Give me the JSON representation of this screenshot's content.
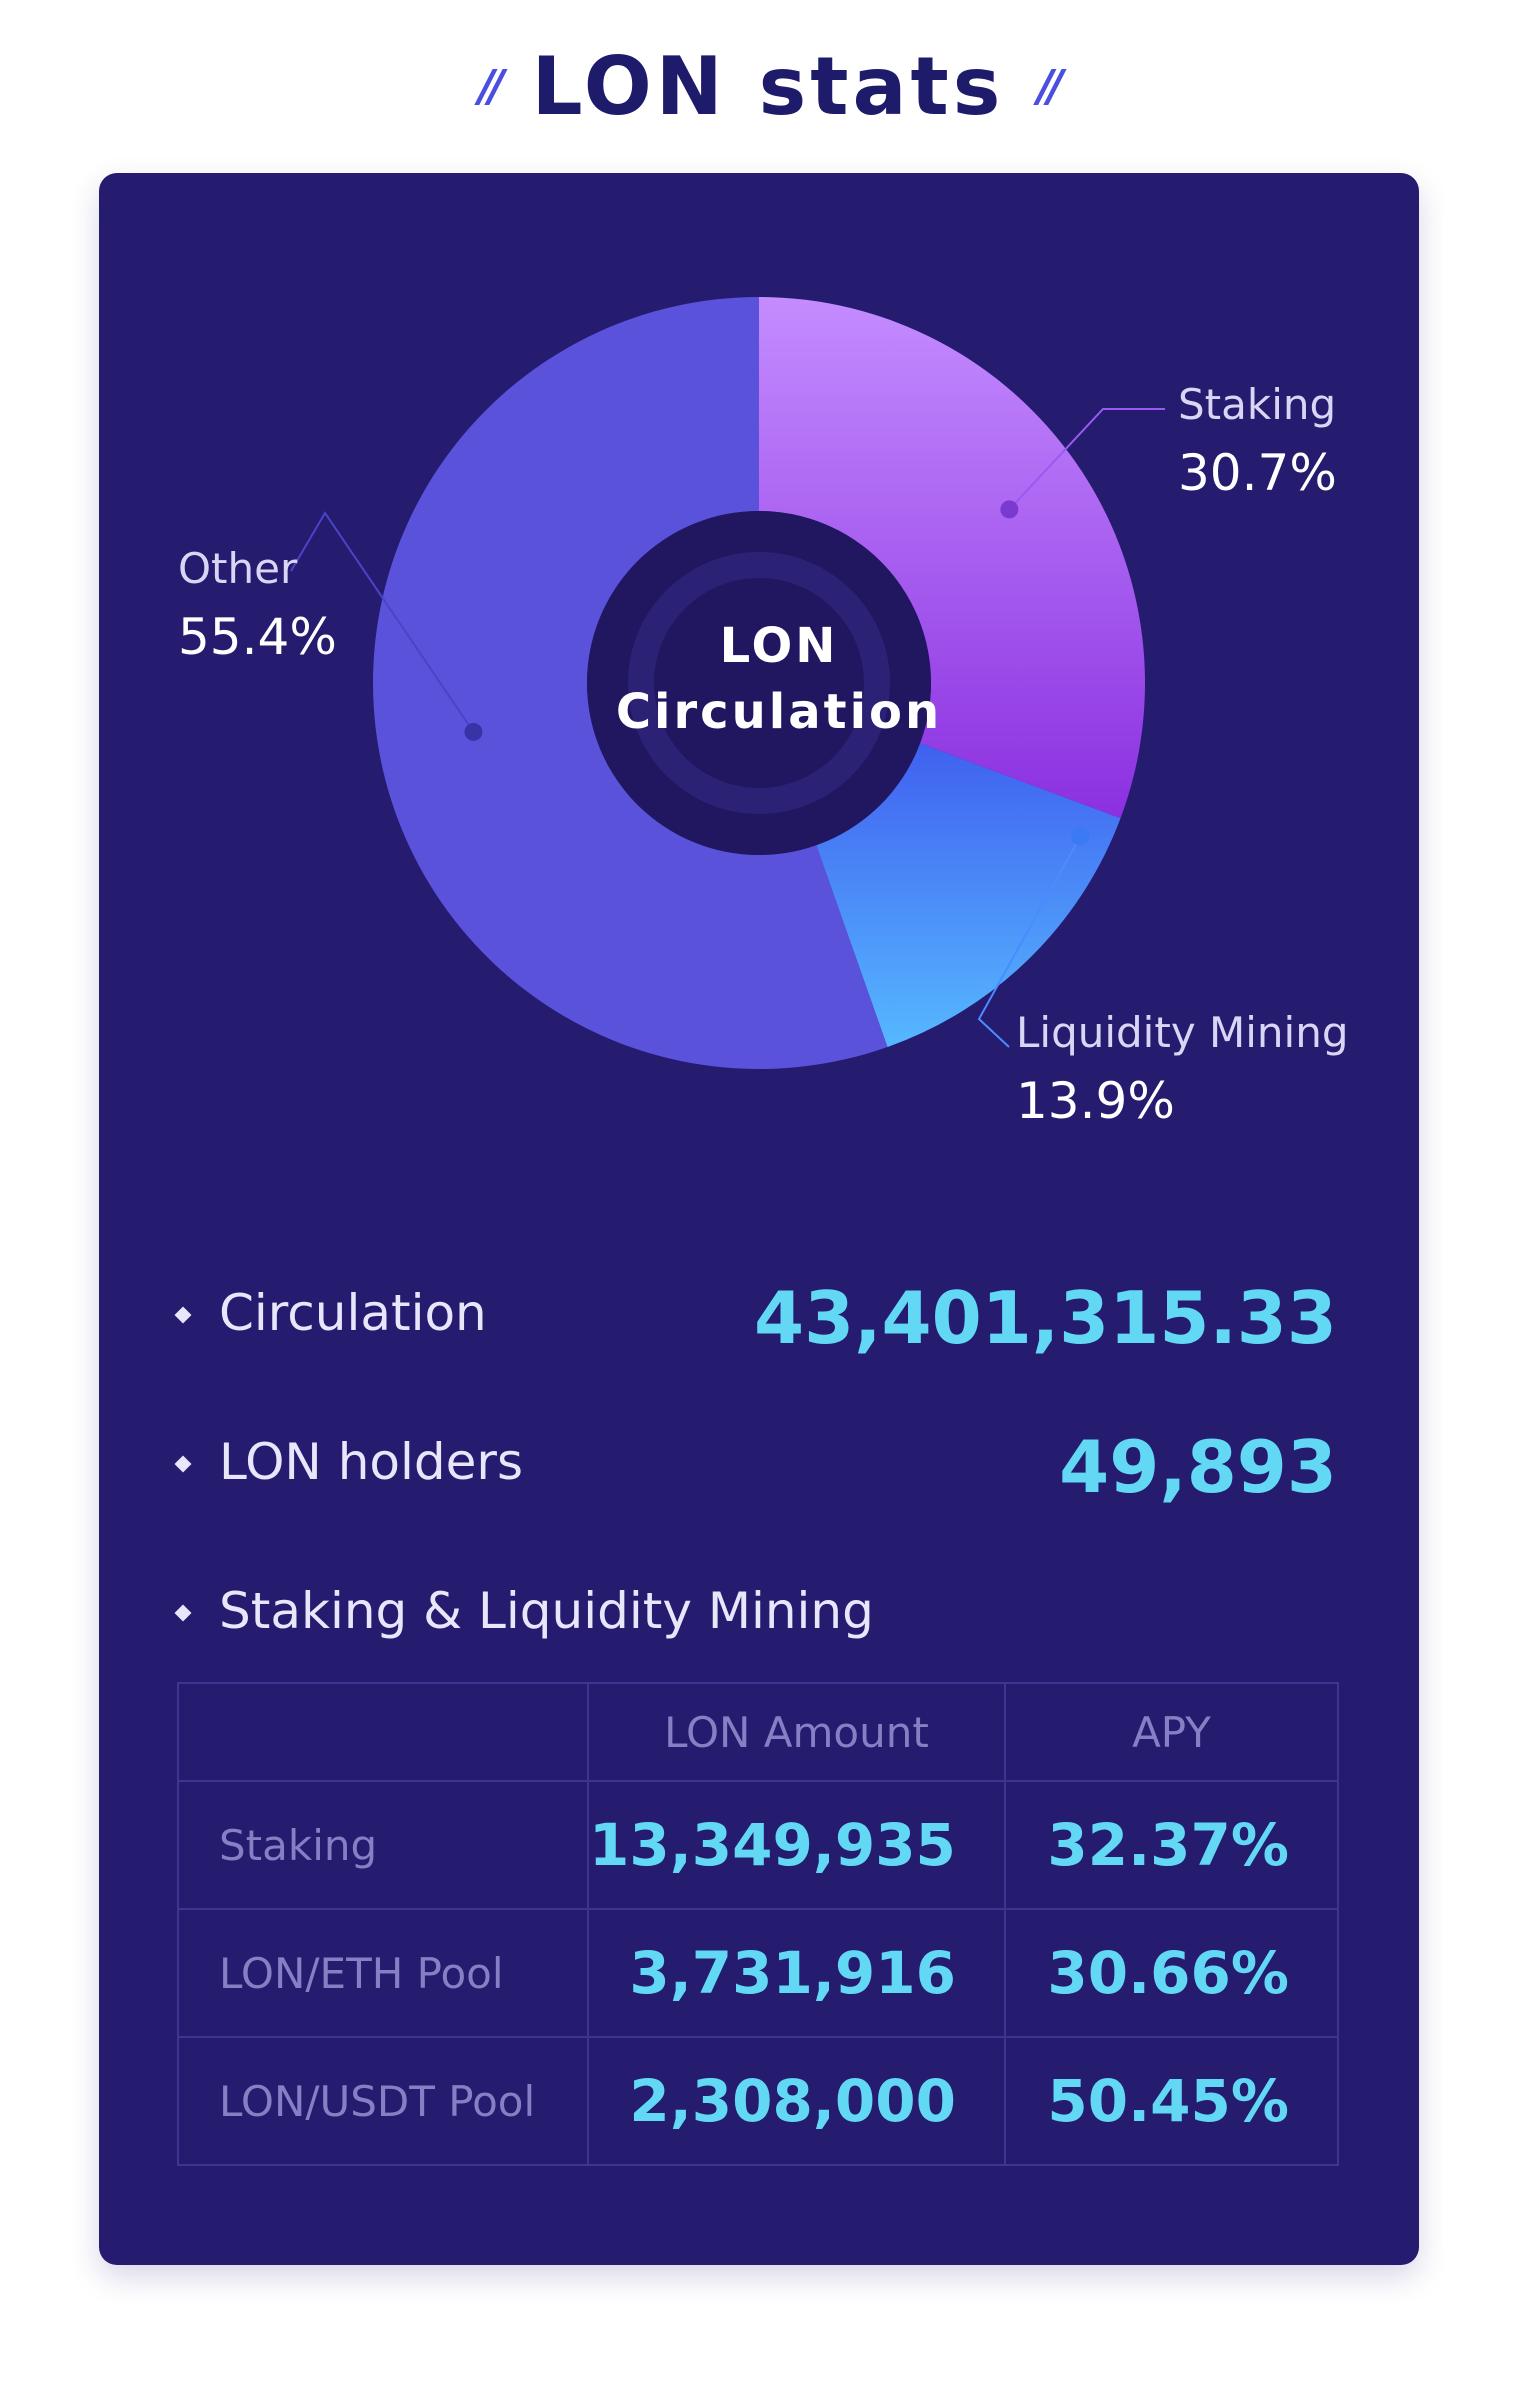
{
  "header": {
    "title": "LON stats",
    "decor_left": "//",
    "decor_right": "//"
  },
  "chart_data": {
    "type": "pie",
    "title": "",
    "center_label": [
      "LON",
      "Circulation"
    ],
    "series": [
      {
        "name": "Staking",
        "value": 30.7,
        "label": "30.7%",
        "colors": [
          "#c48cff",
          "#8b30e0"
        ]
      },
      {
        "name": "Liquidity Mining",
        "value": 13.9,
        "label": "13.9%",
        "colors": [
          "#4060f0",
          "#56b8ff"
        ]
      },
      {
        "name": "Other",
        "value": 55.4,
        "label": "55.4%",
        "colors": [
          "#5b52dc",
          "#5b52dc"
        ]
      }
    ]
  },
  "stats": [
    {
      "label": "Circulation",
      "value": "43,401,315.33"
    },
    {
      "label": "LON holders",
      "value": "49,893"
    },
    {
      "label": "Staking & Liquidity Mining",
      "value": ""
    }
  ],
  "table": {
    "headers": [
      "",
      "LON Amount",
      "APY"
    ],
    "rows": [
      {
        "name": "Staking",
        "amount": "13,349,935",
        "apy": "32.37%"
      },
      {
        "name": "LON/ETH Pool",
        "amount": "3,731,916",
        "apy": "30.66%"
      },
      {
        "name": "LON/USDT Pool",
        "amount": "2,308,000",
        "apy": "50.45%"
      }
    ]
  },
  "colors": {
    "card_background": "#251b6f",
    "accent_value": "#62d8f5",
    "title": "#1f1b6b"
  }
}
